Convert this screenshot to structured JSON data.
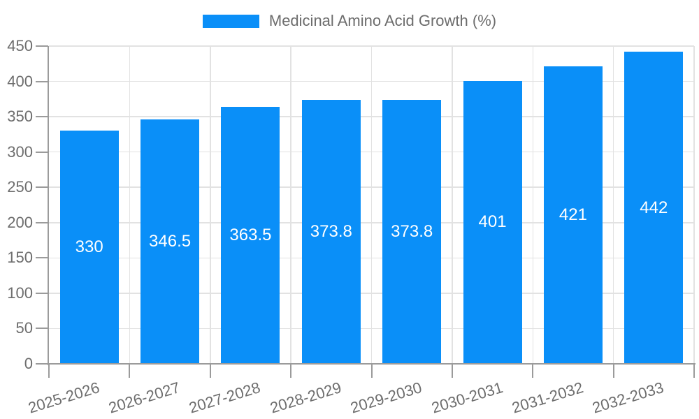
{
  "chart_data": {
    "type": "bar",
    "title": "",
    "legend": {
      "label": "Medicinal Amino Acid Growth (%)",
      "position": "top"
    },
    "categories": [
      "2025-2026",
      "2026-2027",
      "2027-2028",
      "2028-2029",
      "2029-2030",
      "2030-2031",
      "2031-2032",
      "2032-2033"
    ],
    "series": [
      {
        "name": "Medicinal Amino Acid Growth (%)",
        "values": [
          330,
          346.5,
          363.5,
          373.8,
          373.8,
          401,
          421,
          442
        ]
      }
    ],
    "value_labels": [
      "330",
      "346.5",
      "363.5",
      "373.8",
      "373.8",
      "401",
      "421",
      "442"
    ],
    "xlabel": "",
    "ylabel": "",
    "ylim": [
      0,
      450
    ],
    "yticks": [
      0,
      50,
      100,
      150,
      200,
      250,
      300,
      350,
      400,
      450
    ],
    "grid": "full",
    "colors": {
      "bar": "#0a8ff8",
      "bar_value_text": "#ffffff",
      "axis_line": "#9b9b9b",
      "grid_line": "#e2e2e2",
      "label_text": "#6d6d6d"
    }
  }
}
